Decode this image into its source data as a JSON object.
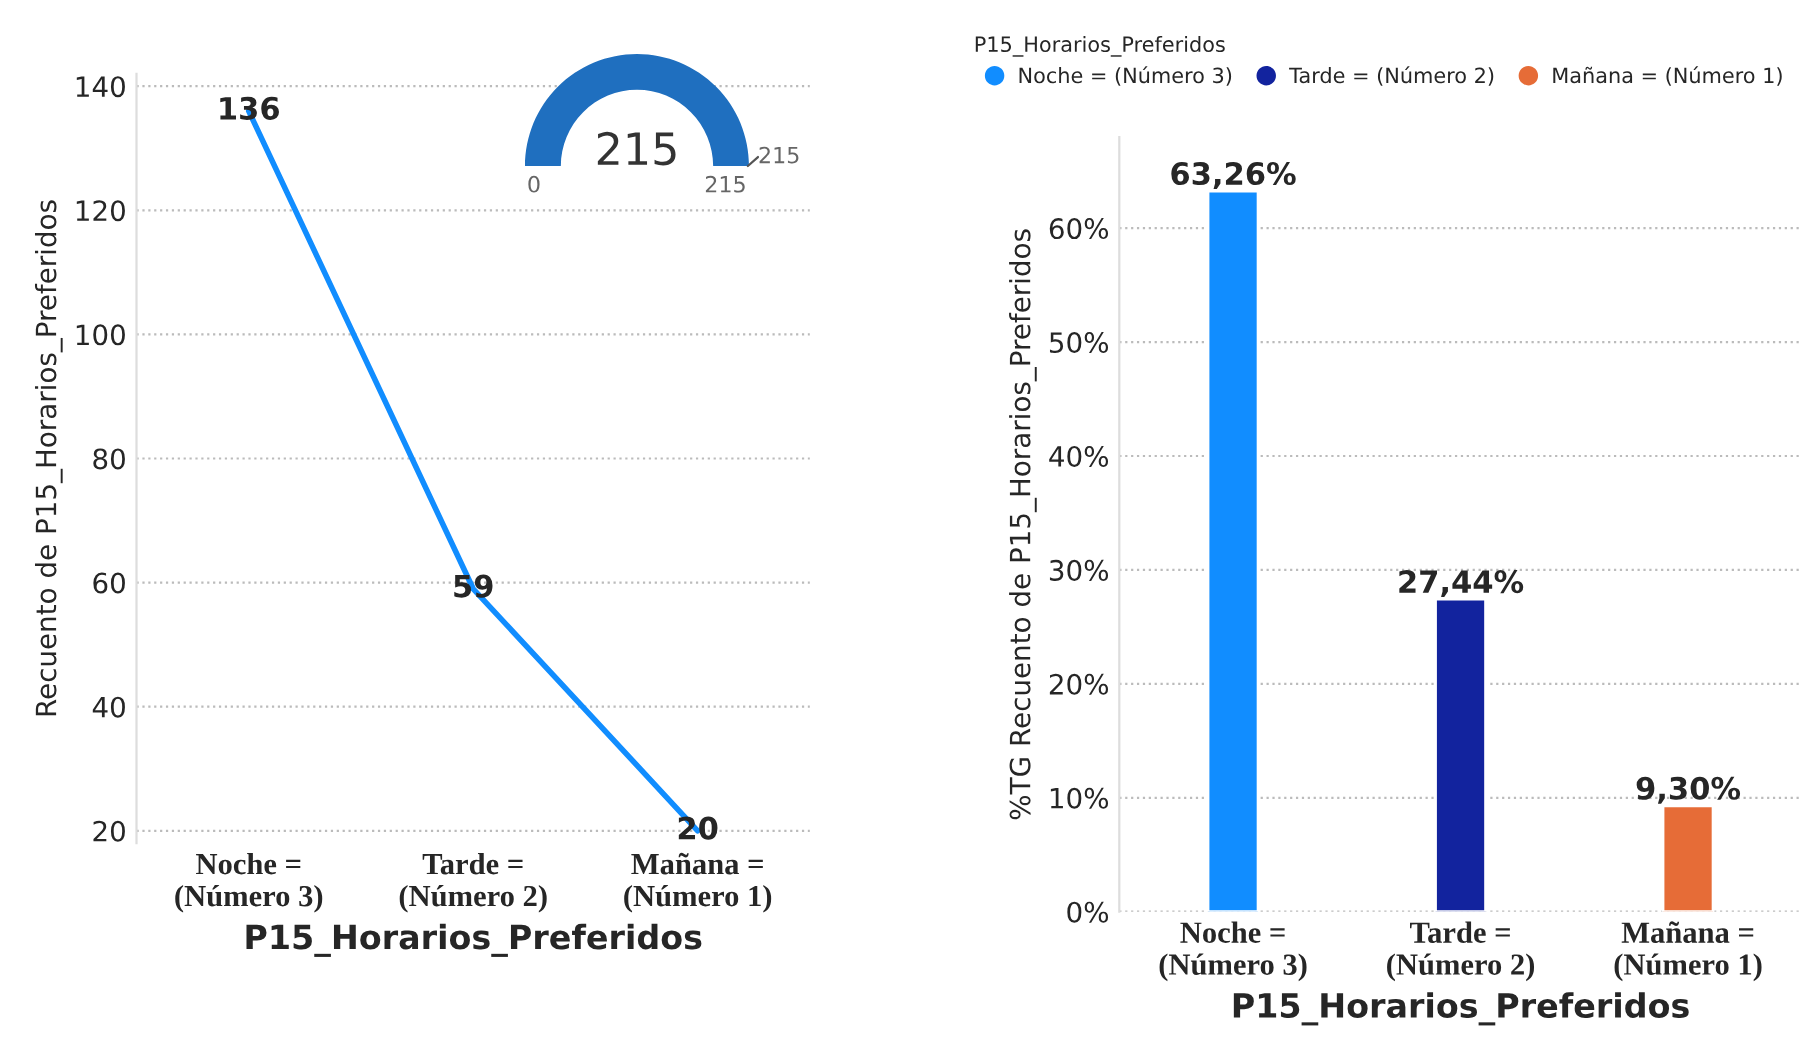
{
  "chart_data": [
    {
      "type": "line",
      "xlabel": "P15_Horarios_Preferidos",
      "ylabel": "Recuento de P15_Horarios_Preferidos",
      "categories": [
        "Noche = (Número 3)",
        "Tarde = (Número 2)",
        "Mañana = (Número 1)"
      ],
      "series": [
        {
          "color": "#118dff",
          "values": [
            136,
            59,
            20
          ]
        }
      ],
      "ylim": [
        18,
        142
      ],
      "yticks": [
        20,
        40,
        60,
        80,
        100,
        120,
        140
      ],
      "grid": "y",
      "data_labels": true,
      "marker": "none",
      "line_style": "solid"
    },
    {
      "type": "pie",
      "categories": [
        null
      ],
      "values": [
        100
      ],
      "colors": [
        "#1f6fbf"
      ],
      "annotations": [
        "215",
        "0",
        "215",
        "215"
      ]
    },
    {
      "type": "bar",
      "xlabel": "P15_Horarios_Preferidos",
      "ylabel": "%TG Recuento de P15_Horarios_Preferidos",
      "legend_title": "P15_Horarios_Preferidos",
      "legend": "top",
      "categories": [
        "Noche = (Número 3)",
        "Tarde = (Número 2)",
        "Mañana = (Número 1)"
      ],
      "series": [
        {
          "name": "Noche = (Número 3)",
          "color": "#118dff",
          "values": [
            63.26,
            null,
            null
          ],
          "value_labels": [
            "63,26%",
            null,
            null
          ]
        },
        {
          "name": "Tarde = (Número 2)",
          "color": "#12239e",
          "values": [
            null,
            27.44,
            null
          ],
          "value_labels": [
            null,
            "27,44%",
            null
          ]
        },
        {
          "name": "Mañana = (Número 1)",
          "color": "#e66c37",
          "values": [
            null,
            null,
            9.3
          ],
          "value_labels": [
            null,
            null,
            "9,30%"
          ]
        }
      ],
      "ylim": [
        0,
        68
      ],
      "yticks": [
        {
          "value": 0,
          "label": "0%"
        },
        {
          "value": 10,
          "label": "10%"
        },
        {
          "value": 20,
          "label": "20%"
        },
        {
          "value": 30,
          "label": "30%"
        },
        {
          "value": 40,
          "label": "40%"
        },
        {
          "value": 50,
          "label": "50%"
        },
        {
          "value": 60,
          "label": "60%"
        }
      ],
      "grid": "y"
    }
  ]
}
